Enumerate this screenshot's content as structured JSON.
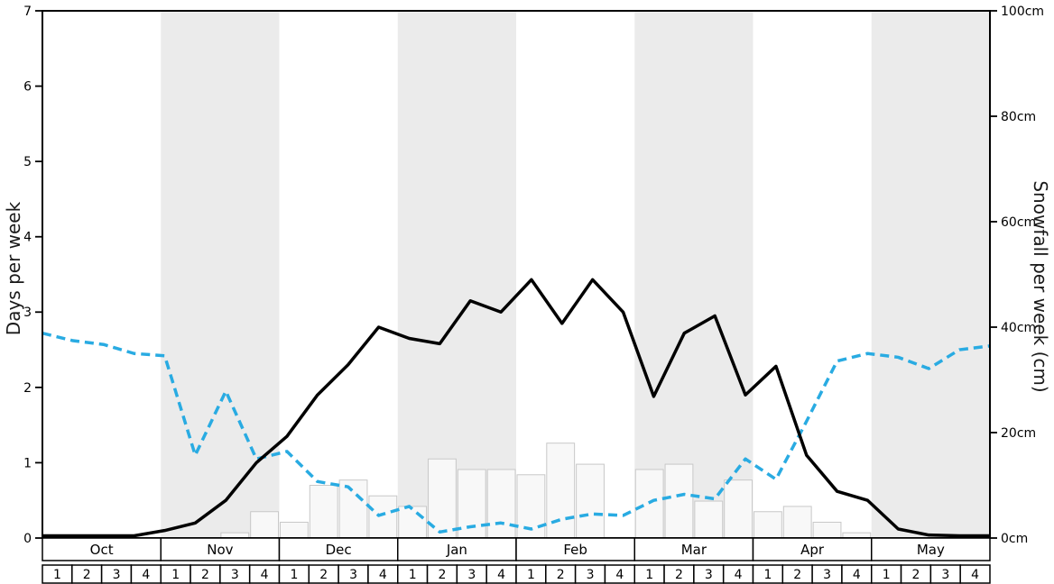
{
  "chart_data": {
    "type": "line",
    "title": "",
    "months": [
      "Oct",
      "Nov",
      "Dec",
      "Jan",
      "Feb",
      "Mar",
      "Apr",
      "May"
    ],
    "week_labels": [
      "1",
      "2",
      "3",
      "4"
    ],
    "shaded_month_indices": [
      1,
      3,
      5,
      7
    ],
    "band_color": "#ebebeb",
    "left_axis": {
      "label": "Days per week",
      "min": 0,
      "max": 7,
      "ticks": [
        0,
        1,
        2,
        3,
        4,
        5,
        6,
        7
      ],
      "tick_suffix": ""
    },
    "right_axis": {
      "label": "Snowfall per week (cm)",
      "min": 0,
      "max": 100,
      "ticks": [
        0,
        20,
        40,
        60,
        80,
        100
      ],
      "tick_suffix": "cm"
    },
    "series": [
      {
        "name": "snow-days-per-week",
        "type": "line",
        "style": "solid",
        "color": "#000000",
        "axis": "left",
        "values": [
          0.03,
          0.03,
          0.03,
          0.03,
          0.1,
          0.2,
          0.5,
          1.0,
          1.35,
          1.9,
          2.3,
          2.8,
          2.65,
          2.58,
          3.15,
          3.0,
          3.43,
          2.85,
          3.43,
          3.0,
          1.88,
          2.72,
          2.95,
          1.9,
          2.28,
          1.1,
          0.62,
          0.5,
          0.12,
          0.04,
          0.03,
          0.03
        ]
      },
      {
        "name": "dashed-trend",
        "type": "line",
        "style": "dashed",
        "color": "#29abe2",
        "axis": "left",
        "values": [
          2.72,
          2.62,
          2.57,
          2.45,
          2.42,
          1.1,
          1.95,
          1.05,
          1.15,
          0.75,
          0.68,
          0.3,
          0.42,
          0.08,
          0.15,
          0.2,
          0.12,
          0.25,
          0.32,
          0.3,
          0.5,
          0.58,
          0.52,
          1.05,
          0.78,
          1.55,
          2.35,
          2.45,
          2.4,
          2.25,
          2.5,
          2.55
        ]
      },
      {
        "name": "snowfall-per-week-cm",
        "type": "bar",
        "color": "#f8f8f8",
        "border": "#c8c8c8",
        "axis": "right",
        "values": [
          0,
          0,
          0,
          0,
          0,
          0,
          1,
          5,
          3,
          10,
          11,
          8,
          6,
          15,
          13,
          13,
          12,
          18,
          14,
          0,
          13,
          14,
          7,
          11,
          5,
          6,
          3,
          1,
          0,
          0,
          0,
          0
        ]
      }
    ]
  }
}
